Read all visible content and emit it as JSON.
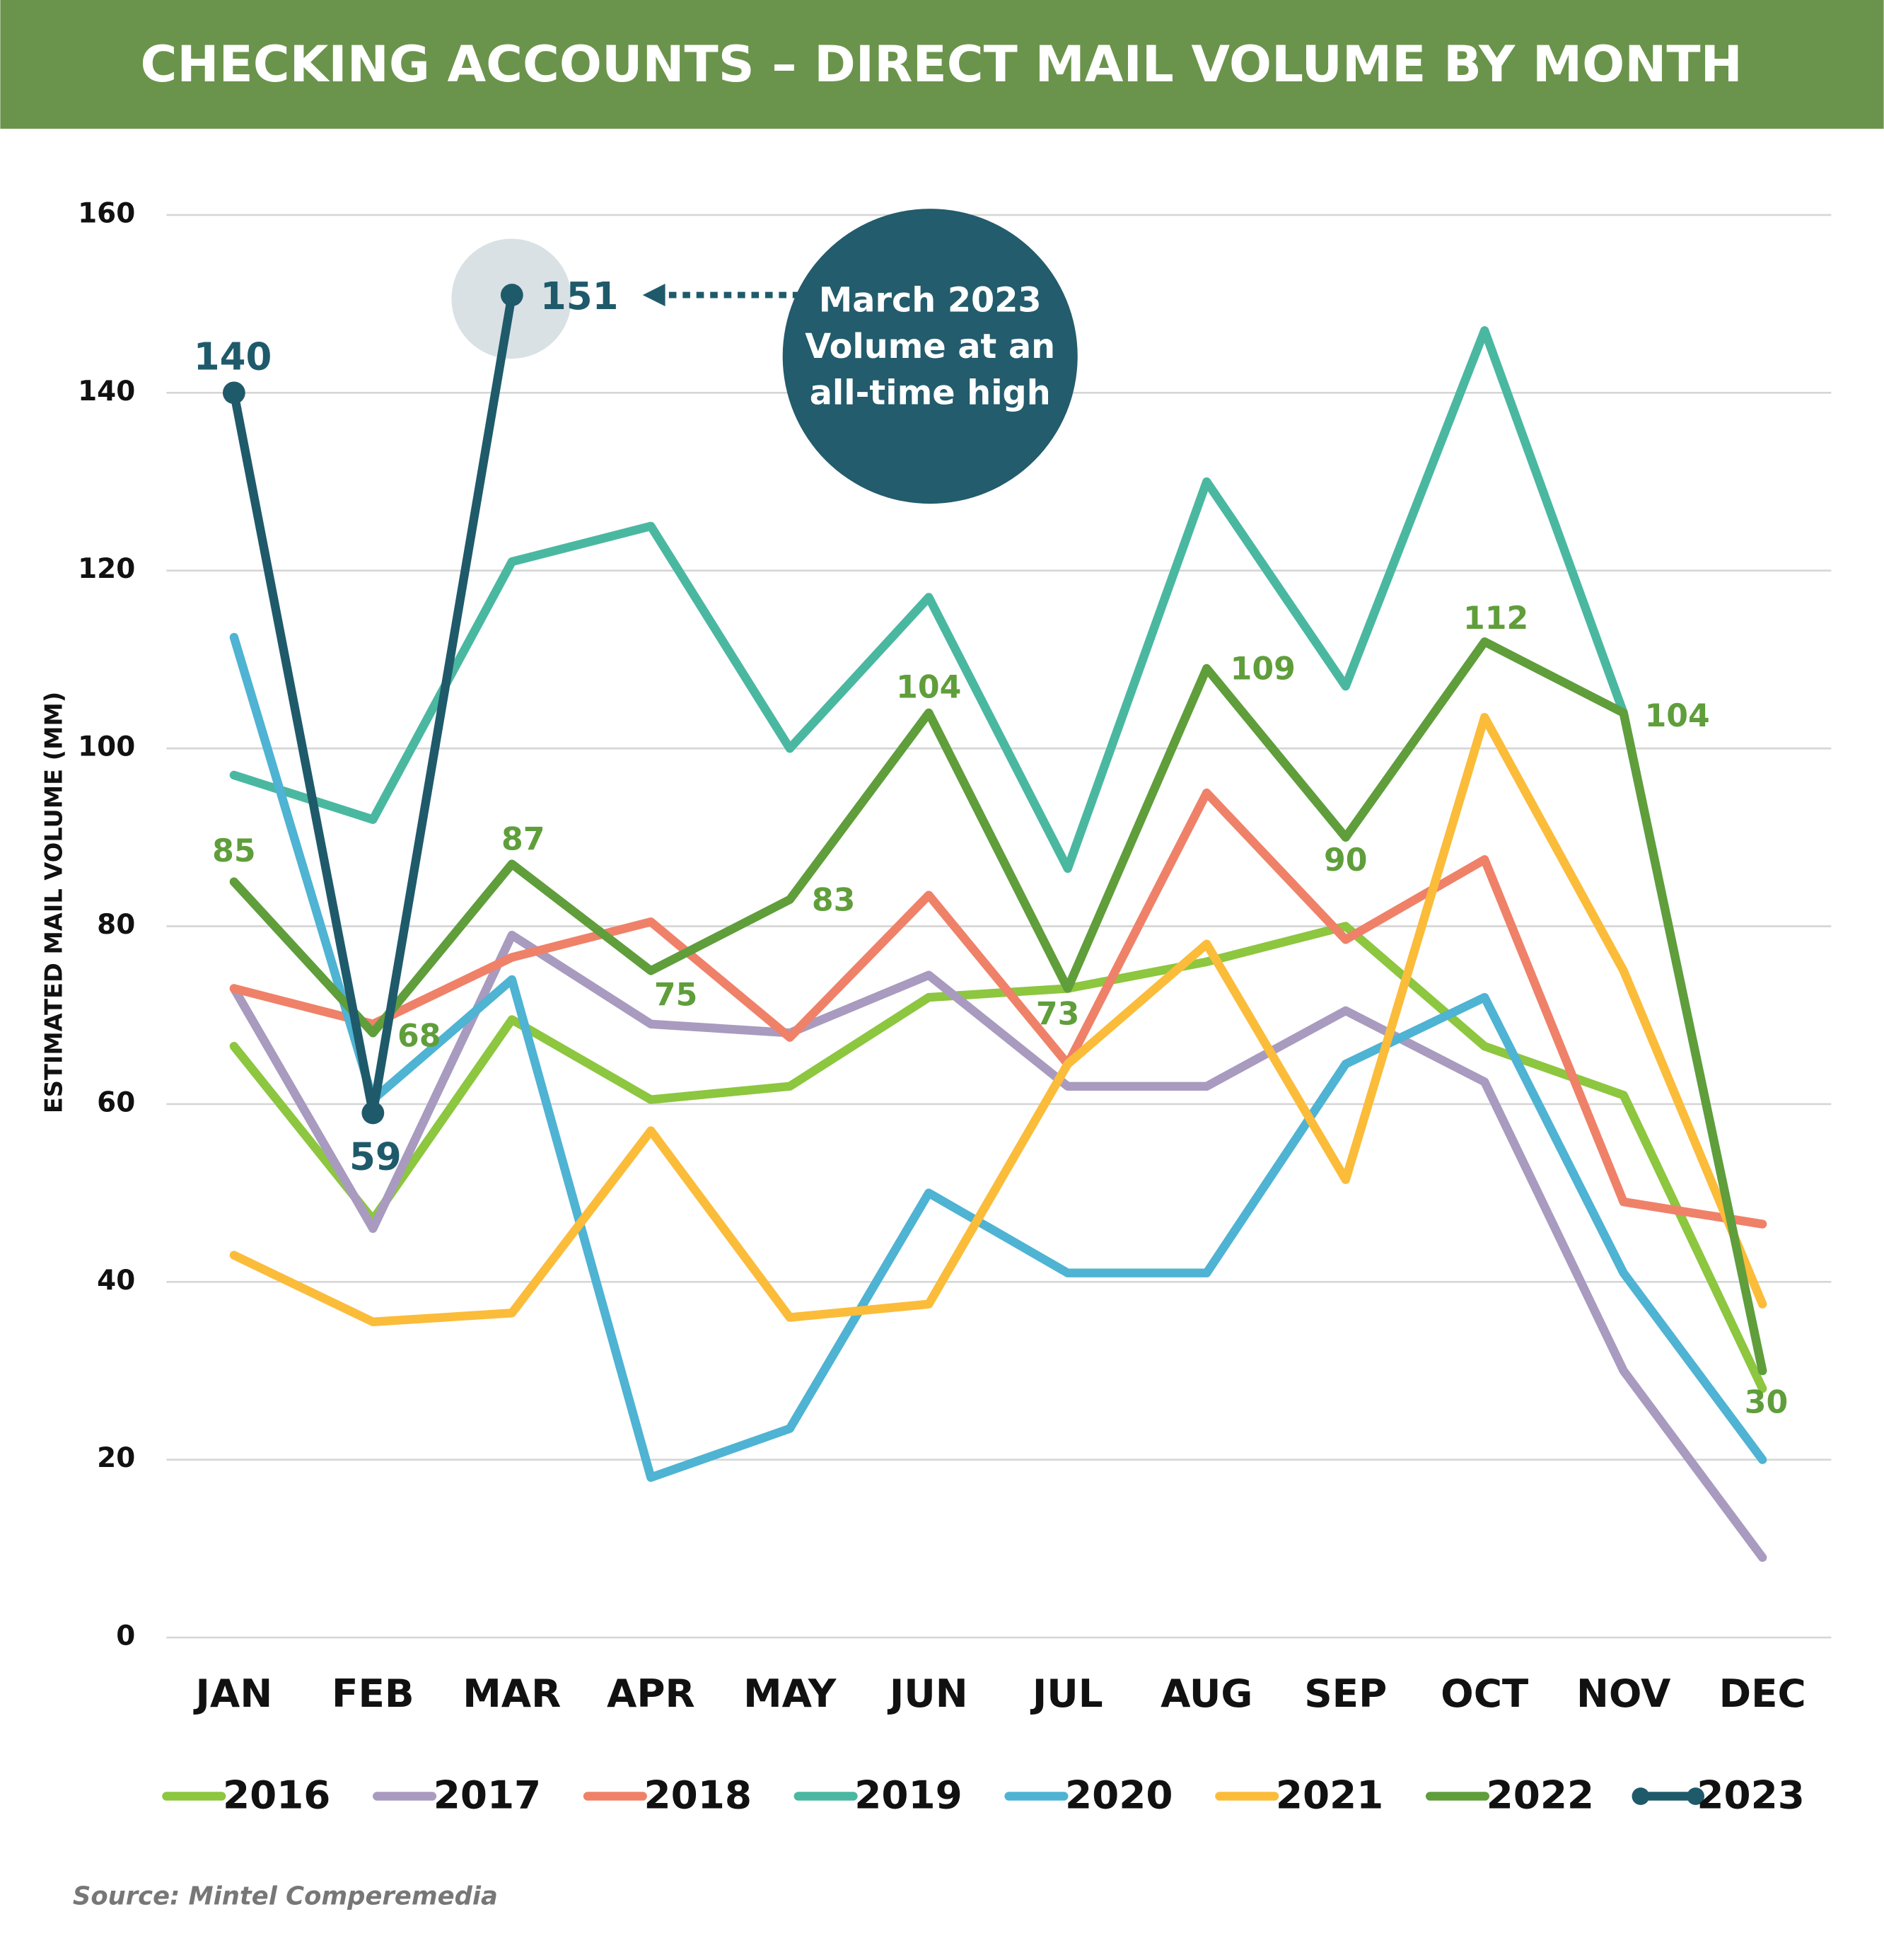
{
  "chart_data": {
    "type": "line",
    "title": "CHECKING ACCOUNTS – DIRECT MAIL VOLUME BY MONTH",
    "y_label": "ESTIMATED MAIL VOLUME (MM)",
    "source": "Source: Mintel Comperemedia",
    "annotation": [
      "March 2023",
      "Volume at an",
      "all-time high"
    ],
    "categories": [
      "JAN",
      "FEB",
      "MAR",
      "APR",
      "MAY",
      "JUN",
      "JUL",
      "AUG",
      "SEP",
      "OCT",
      "NOV",
      "DEC"
    ],
    "ylim": [
      0,
      160
    ],
    "yticks": [
      0,
      20,
      40,
      60,
      80,
      100,
      120,
      140,
      160
    ],
    "grid": true,
    "legend": "bottom",
    "series": [
      {
        "name": "2016",
        "color": "#8dc63f",
        "values": [
          66.5,
          47,
          69.5,
          60.5,
          62,
          72,
          73,
          76,
          80,
          66.5,
          61,
          28
        ]
      },
      {
        "name": "2017",
        "color": "#a89bbf",
        "values": [
          73,
          46,
          79,
          69,
          68,
          74.5,
          62,
          62,
          70.5,
          62.5,
          30,
          9
        ]
      },
      {
        "name": "2018",
        "color": "#ef8169",
        "values": [
          73,
          69,
          76.5,
          80.5,
          67.5,
          83.5,
          64.5,
          95,
          78.5,
          87.5,
          49,
          46.5
        ]
      },
      {
        "name": "2019",
        "color": "#4ab8a0",
        "values": [
          97,
          92,
          121,
          125,
          100,
          117,
          86.5,
          130,
          107,
          147,
          104,
          30
        ]
      },
      {
        "name": "2020",
        "color": "#4fb3d3",
        "values": [
          112.5,
          60.5,
          74,
          18,
          23.5,
          50,
          41,
          41,
          64.5,
          72,
          41,
          20
        ]
      },
      {
        "name": "2021",
        "color": "#fbbc3a",
        "values": [
          43,
          35.5,
          36.5,
          57,
          36,
          37.5,
          64.5,
          78,
          51.5,
          103.5,
          75,
          37.5
        ]
      },
      {
        "name": "2022",
        "color": "#5f9e3b",
        "data_labels": true,
        "values": [
          85,
          68,
          87,
          75,
          83,
          104,
          73,
          109,
          90,
          112,
          104,
          30
        ]
      },
      {
        "name": "2023",
        "color": "#1f5a6b",
        "data_labels": true,
        "markers": true,
        "values": [
          140,
          59,
          151,
          null,
          null,
          null,
          null,
          null,
          null,
          null,
          null,
          null
        ]
      }
    ]
  }
}
